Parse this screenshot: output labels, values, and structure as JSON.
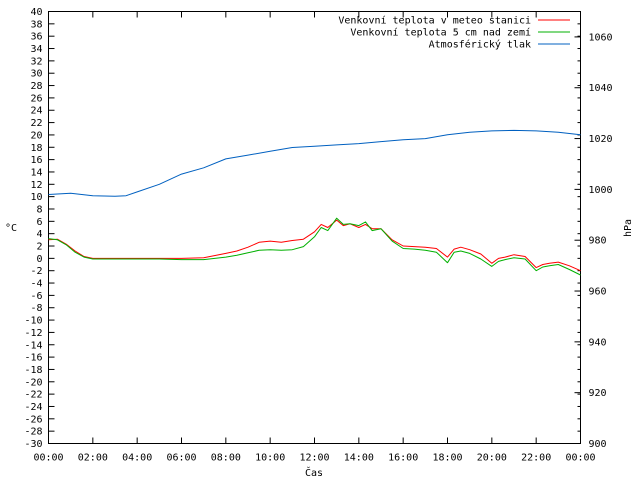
{
  "chart_data": {
    "type": "line",
    "xlabel": "Čas",
    "ylabel_left": "°C",
    "ylabel_right": "hPa",
    "x_ticks": [
      "00:00",
      "02:00",
      "04:00",
      "06:00",
      "08:00",
      "10:00",
      "12:00",
      "14:00",
      "16:00",
      "18:00",
      "20:00",
      "22:00",
      "00:00"
    ],
    "xlim_hours": [
      0,
      24
    ],
    "ylim_left": [
      -30,
      40
    ],
    "ylim_right": [
      900,
      1070
    ],
    "left_ticks": [
      40,
      38,
      36,
      34,
      32,
      30,
      28,
      26,
      24,
      22,
      20,
      18,
      16,
      14,
      12,
      10,
      8,
      6,
      4,
      2,
      0,
      -2,
      -4,
      -6,
      -8,
      -10,
      -12,
      -14,
      -16,
      -18,
      -20,
      -22,
      -24,
      -26,
      -28,
      -30
    ],
    "right_ticks": [
      1060,
      1040,
      1020,
      1000,
      980,
      960,
      940,
      920,
      900
    ],
    "grid": false,
    "legend_position": "top-right",
    "series": [
      {
        "name": "Venkovní teplota v meteo stanici",
        "color": "#ff0000",
        "axis": "left",
        "x": [
          0,
          0.4,
          0.8,
          1.2,
          1.6,
          2,
          3,
          4,
          5,
          6,
          7,
          8,
          8.5,
          9,
          9.5,
          10,
          10.5,
          11,
          11.5,
          12,
          12.3,
          12.6,
          13,
          13.3,
          13.6,
          14,
          14.3,
          14.6,
          15,
          15.5,
          16,
          16.5,
          17,
          17.5,
          18,
          18.3,
          18.6,
          19,
          19.5,
          20,
          20.3,
          20.6,
          21,
          21.5,
          22,
          22.3,
          22.6,
          23,
          23.5,
          24
        ],
        "values": [
          3.0,
          3.1,
          2.3,
          1.2,
          0.3,
          0.0,
          0.0,
          0.0,
          0.0,
          0.0,
          0.1,
          0.8,
          1.2,
          1.8,
          2.6,
          2.8,
          2.6,
          2.9,
          3.1,
          4.3,
          5.5,
          5.0,
          6.2,
          5.3,
          5.6,
          5.0,
          5.5,
          4.8,
          4.8,
          3.0,
          2.0,
          1.9,
          1.8,
          1.6,
          0.2,
          1.5,
          1.8,
          1.4,
          0.7,
          -0.8,
          0.0,
          0.2,
          0.6,
          0.3,
          -1.5,
          -1.0,
          -0.8,
          -0.6,
          -1.2,
          -2.0
        ]
      },
      {
        "name": "Venkovní teplota 5 cm nad zemí",
        "color": "#00b000",
        "axis": "left",
        "x": [
          0,
          0.4,
          0.8,
          1.2,
          1.6,
          2,
          3,
          4,
          5,
          6,
          7,
          8,
          8.5,
          9,
          9.5,
          10,
          10.5,
          11,
          11.5,
          12,
          12.3,
          12.6,
          13,
          13.3,
          13.6,
          14,
          14.3,
          14.6,
          15,
          15.5,
          16,
          16.5,
          17,
          17.5,
          18,
          18.3,
          18.6,
          19,
          19.5,
          20,
          20.3,
          20.6,
          21,
          21.5,
          22,
          22.3,
          22.6,
          23,
          23.5,
          24
        ],
        "values": [
          3.2,
          3.0,
          2.2,
          1.0,
          0.2,
          -0.1,
          -0.1,
          -0.1,
          -0.1,
          -0.2,
          -0.2,
          0.2,
          0.5,
          0.9,
          1.3,
          1.4,
          1.3,
          1.4,
          1.9,
          3.5,
          5.0,
          4.5,
          6.5,
          5.5,
          5.6,
          5.3,
          5.9,
          4.5,
          4.8,
          2.8,
          1.6,
          1.5,
          1.3,
          1.0,
          -0.7,
          1.0,
          1.2,
          0.8,
          -0.1,
          -1.3,
          -0.5,
          -0.2,
          0.1,
          -0.1,
          -2.0,
          -1.4,
          -1.2,
          -1.0,
          -1.8,
          -2.7
        ]
      },
      {
        "name": "Atmosférický tlak",
        "color": "#0060c0",
        "axis": "right",
        "x": [
          0,
          1,
          2,
          3,
          3.5,
          4,
          5,
          6,
          7,
          8,
          9,
          10,
          11,
          12,
          13,
          14,
          15,
          16,
          17,
          18,
          19,
          20,
          21,
          22,
          23,
          24
        ],
        "values": [
          998.0,
          998.5,
          997.5,
          997.3,
          997.5,
          999.0,
          1002.0,
          1006.0,
          1008.5,
          1012.0,
          1013.5,
          1015.0,
          1016.5,
          1017.0,
          1017.5,
          1018.0,
          1018.8,
          1019.5,
          1020.0,
          1021.5,
          1022.5,
          1023.0,
          1023.2,
          1023.0,
          1022.5,
          1021.5
        ]
      }
    ]
  }
}
